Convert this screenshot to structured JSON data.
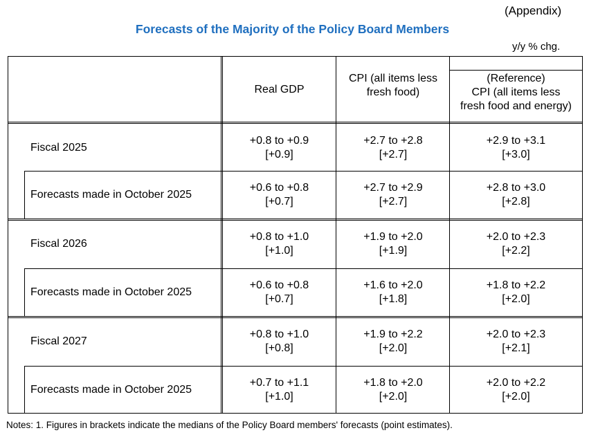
{
  "appendix": "(Appendix)",
  "title": "Forecasts of the Majority of the Policy Board Members",
  "unit": "y/y % chg.",
  "headers": {
    "gdp": "Real GDP",
    "cpi_line1": "CPI (all items less",
    "cpi_line2": "fresh food)",
    "ref_line1": "(Reference)",
    "ref_line2": "CPI (all items less",
    "ref_line3": "fresh food and energy)"
  },
  "rows": [
    {
      "label": "Fiscal 2025",
      "gdp": "+0.8 to +0.9",
      "gdp_med": "[+0.9]",
      "cpi": "+2.7 to +2.8",
      "cpi_med": "[+2.7]",
      "ref": "+2.9 to +3.1",
      "ref_med": "[+3.0]"
    },
    {
      "label": "Forecasts made in October 2025",
      "gdp": "+0.6 to +0.8",
      "gdp_med": "[+0.7]",
      "cpi": "+2.7 to +2.9",
      "cpi_med": "[+2.7]",
      "ref": "+2.8 to +3.0",
      "ref_med": "[+2.8]"
    },
    {
      "label": "Fiscal 2026",
      "gdp": "+0.8 to +1.0",
      "gdp_med": "[+1.0]",
      "cpi": "+1.9 to +2.0",
      "cpi_med": "[+1.9]",
      "ref": "+2.0 to +2.3",
      "ref_med": "[+2.2]"
    },
    {
      "label": "Forecasts made in October 2025",
      "gdp": "+0.6 to +0.8",
      "gdp_med": "[+0.7]",
      "cpi": "+1.6 to +2.0",
      "cpi_med": "[+1.8]",
      "ref": "+1.8 to +2.2",
      "ref_med": "[+2.0]"
    },
    {
      "label": "Fiscal 2027",
      "gdp": "+0.8 to +1.0",
      "gdp_med": "[+0.8]",
      "cpi": "+1.9 to +2.2",
      "cpi_med": "[+2.0]",
      "ref": "+2.0 to +2.3",
      "ref_med": "[+2.1]"
    },
    {
      "label": "Forecasts made in October 2025",
      "gdp": "+0.7 to +1.1",
      "gdp_med": "[+1.0]",
      "cpi": "+1.8 to +2.0",
      "cpi_med": "[+2.0]",
      "ref": "+2.0 to +2.2",
      "ref_med": "[+2.0]"
    }
  ],
  "note": "Notes: 1. Figures in brackets indicate the medians of the Policy Board members' forecasts (point estimates)."
}
